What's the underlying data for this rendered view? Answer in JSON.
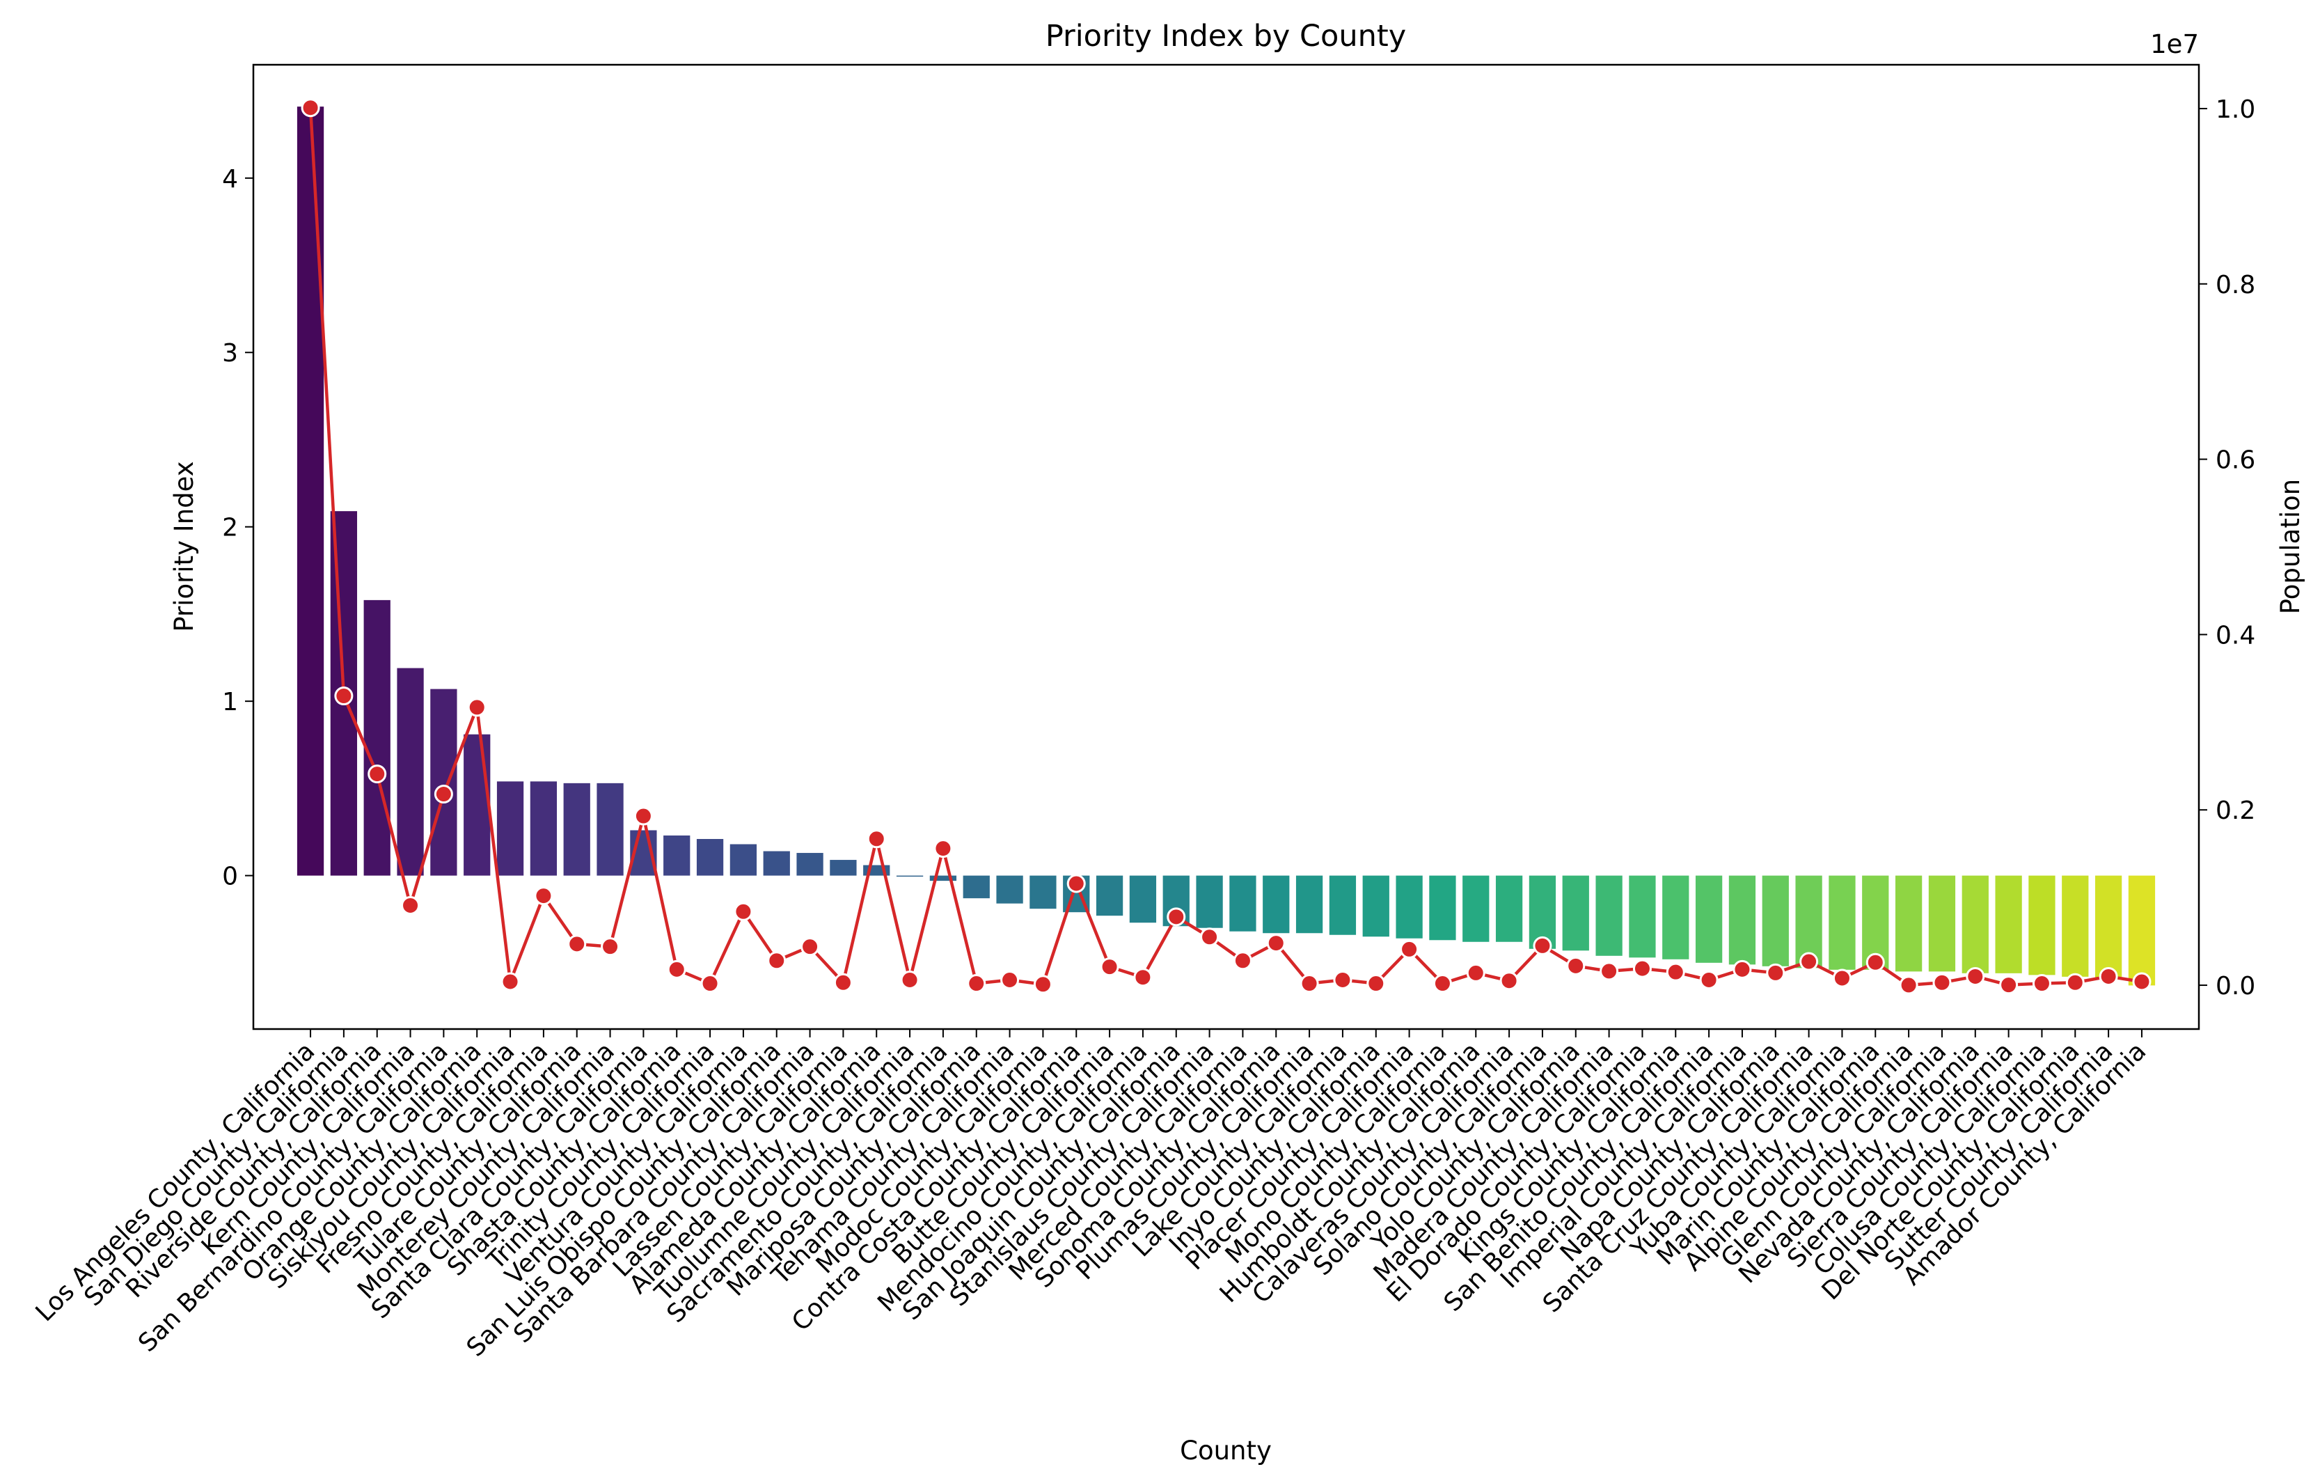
{
  "chart_data": {
    "type": "bar",
    "title": "Priority Index by County",
    "xlabel": "County",
    "ylabel": "Priority Index",
    "ylabel_right": "Population",
    "right_axis_multiplier": "1e7",
    "ylim": [
      -0.88,
      4.65
    ],
    "ylim_right": [
      -500000,
      10500000
    ],
    "yticks": [
      0,
      1,
      2,
      3,
      4
    ],
    "yticks_right": [
      0.0,
      0.2,
      0.4,
      0.6,
      0.8,
      1.0
    ],
    "bar_palette": "viridis",
    "line_color": "#d62728",
    "grid": false,
    "categories": [
      "Los Angeles County, California",
      "San Diego County, California",
      "Riverside County, California",
      "Kern County, California",
      "San Bernardino County, California",
      "Orange County, California",
      "Siskiyou County, California",
      "Fresno County, California",
      "Tulare County, California",
      "Monterey County, California",
      "Santa Clara County, California",
      "Shasta County, California",
      "Trinity County, California",
      "Ventura County, California",
      "San Luis Obispo County, California",
      "Santa Barbara County, California",
      "Lassen County, California",
      "Alameda County, California",
      "Tuolumne County, California",
      "Sacramento County, California",
      "Mariposa County, California",
      "Tehama County, California",
      "Modoc County, California",
      "Contra Costa County, California",
      "Butte County, California",
      "Mendocino County, California",
      "San Joaquin County, California",
      "Stanislaus County, California",
      "Merced County, California",
      "Sonoma County, California",
      "Plumas County, California",
      "Lake County, California",
      "Inyo County, California",
      "Placer County, California",
      "Mono County, California",
      "Humboldt County, California",
      "Calaveras County, California",
      "Solano County, California",
      "Yolo County, California",
      "Madera County, California",
      "El Dorado County, California",
      "Kings County, California",
      "San Benito County, California",
      "Imperial County, California",
      "Napa County, California",
      "Santa Cruz County, California",
      "Yuba County, California",
      "Marin County, California",
      "Alpine County, California",
      "Glenn County, California",
      "Nevada County, California",
      "Sierra County, California",
      "Colusa County, California",
      "Del Norte County, California",
      "Sutter County, California",
      "Amador County, California"
    ],
    "series": [
      {
        "type": "bar",
        "axis": "left",
        "values": [
          4.41,
          2.09,
          1.58,
          1.19,
          1.07,
          0.81,
          0.54,
          0.54,
          0.53,
          0.53,
          0.26,
          0.23,
          0.21,
          0.18,
          0.14,
          0.13,
          0.09,
          0.06,
          0.0,
          -0.03,
          -0.13,
          -0.16,
          -0.19,
          -0.21,
          -0.23,
          -0.27,
          -0.29,
          -0.3,
          -0.32,
          -0.33,
          -0.33,
          -0.34,
          -0.35,
          -0.36,
          -0.37,
          -0.38,
          -0.38,
          -0.42,
          -0.43,
          -0.46,
          -0.47,
          -0.48,
          -0.5,
          -0.51,
          -0.52,
          -0.53,
          -0.54,
          -0.54,
          -0.55,
          -0.55,
          -0.56,
          -0.56,
          -0.57,
          -0.58,
          -0.59,
          -0.63
        ]
      },
      {
        "type": "line",
        "axis": "right",
        "values": [
          10010000,
          3300000,
          2410000,
          910000,
          2180000,
          3170000,
          40000,
          1020000,
          470000,
          440000,
          1930000,
          180000,
          20000,
          840000,
          280000,
          440000,
          30000,
          1670000,
          60000,
          1560000,
          20000,
          60000,
          10000,
          1160000,
          210000,
          90000,
          780000,
          550000,
          280000,
          480000,
          20000,
          60000,
          20000,
          410000,
          20000,
          140000,
          50000,
          450000,
          220000,
          160000,
          190000,
          150000,
          60000,
          180000,
          140000,
          270000,
          80000,
          260000,
          1000,
          30000,
          100000,
          3000,
          20000,
          30000,
          100000,
          40000
        ]
      }
    ]
  }
}
